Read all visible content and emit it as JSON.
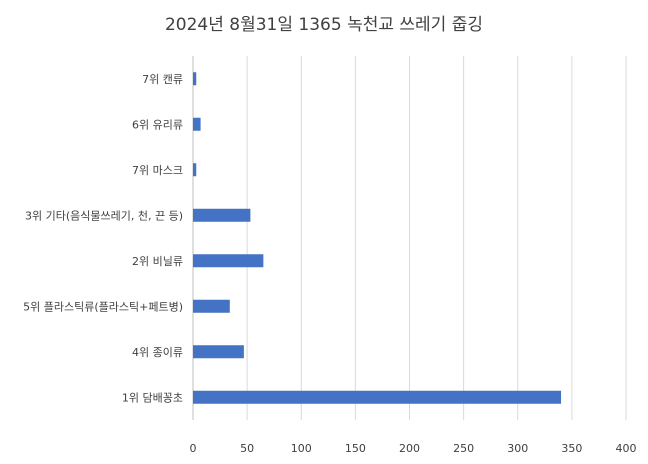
{
  "chart_data": {
    "type": "bar",
    "orientation": "horizontal",
    "title": "2024년 8월31일 1365 녹천교 쓰레기 줍깅",
    "categories": [
      "7위 캔류",
      "6위 유리류",
      "7위 마스크",
      "3위 기타(음식물쓰레기, 천, 끈 등)",
      "2위 비닐류",
      "5위 플라스틱류(플라스틱+페트병)",
      "4위 종이류",
      "1위 담배꽁초"
    ],
    "values": [
      3,
      7,
      3,
      53,
      65,
      34,
      47,
      340
    ],
    "xlim": [
      0,
      400
    ],
    "xticks": [
      "0",
      "50",
      "100",
      "150",
      "200",
      "250",
      "300",
      "350",
      "400"
    ],
    "grid": true,
    "legend": "none",
    "bar_color": "#4472c4"
  }
}
